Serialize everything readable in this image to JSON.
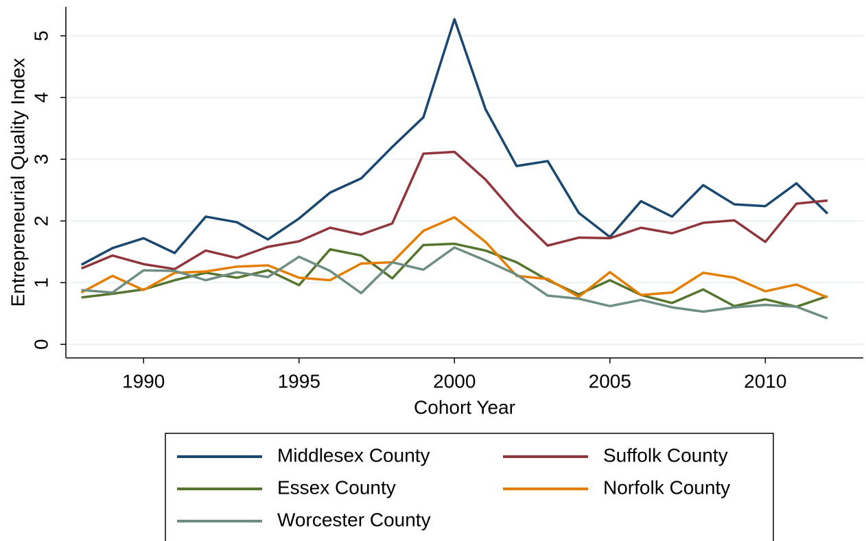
{
  "chart_data": {
    "type": "line",
    "x_label": "Cohort Year",
    "y_label": "Entrepreneurial Quality Index",
    "x": [
      1988,
      1989,
      1990,
      1991,
      1992,
      1993,
      1994,
      1995,
      1996,
      1997,
      1998,
      1999,
      2000,
      2001,
      2002,
      2003,
      2004,
      2005,
      2006,
      2007,
      2008,
      2009,
      2010,
      2011,
      2012
    ],
    "series": [
      {
        "name": "Middlesex County",
        "color": "#1a476f",
        "values": [
          1.29,
          1.56,
          1.72,
          1.48,
          2.07,
          1.98,
          1.7,
          2.04,
          2.46,
          2.69,
          3.2,
          3.68,
          5.27,
          3.81,
          2.89,
          2.97,
          2.13,
          1.74,
          2.32,
          2.07,
          2.58,
          2.27,
          2.24,
          2.61,
          2.12
        ]
      },
      {
        "name": "Suffolk County",
        "color": "#90353b",
        "values": [
          1.23,
          1.44,
          1.3,
          1.22,
          1.52,
          1.4,
          1.58,
          1.67,
          1.89,
          1.78,
          1.96,
          3.09,
          3.12,
          2.67,
          2.09,
          1.6,
          1.73,
          1.72,
          1.89,
          1.8,
          1.97,
          2.01,
          1.66,
          2.28,
          2.33
        ]
      },
      {
        "name": "Essex County",
        "color": "#55752f",
        "values": [
          0.76,
          0.82,
          0.89,
          1.04,
          1.16,
          1.08,
          1.2,
          0.96,
          1.54,
          1.44,
          1.07,
          1.61,
          1.63,
          1.52,
          1.33,
          1.04,
          0.81,
          1.04,
          0.8,
          0.67,
          0.89,
          0.62,
          0.73,
          0.61,
          0.78
        ]
      },
      {
        "name": "Norfolk County",
        "color": "#e37e00",
        "values": [
          0.84,
          1.11,
          0.88,
          1.16,
          1.18,
          1.26,
          1.28,
          1.08,
          1.04,
          1.31,
          1.33,
          1.84,
          2.06,
          1.66,
          1.11,
          1.06,
          0.77,
          1.17,
          0.8,
          0.84,
          1.16,
          1.08,
          0.86,
          0.97,
          0.76
        ]
      },
      {
        "name": "Worcester County",
        "color": "#6e8e84",
        "values": [
          0.88,
          0.84,
          1.2,
          1.19,
          1.04,
          1.17,
          1.09,
          1.42,
          1.19,
          0.83,
          1.33,
          1.21,
          1.57,
          1.36,
          1.13,
          0.79,
          0.74,
          0.62,
          0.72,
          0.6,
          0.53,
          0.6,
          0.64,
          0.61,
          0.42
        ]
      }
    ],
    "xlim": [
      1987.5,
      2013.15
    ],
    "xticks": [
      1990,
      1995,
      2000,
      2005,
      2010
    ],
    "ylim": [
      -0.22,
      5.47
    ],
    "yticks": [
      0,
      1,
      2,
      3,
      4,
      5
    ],
    "grid": true
  }
}
